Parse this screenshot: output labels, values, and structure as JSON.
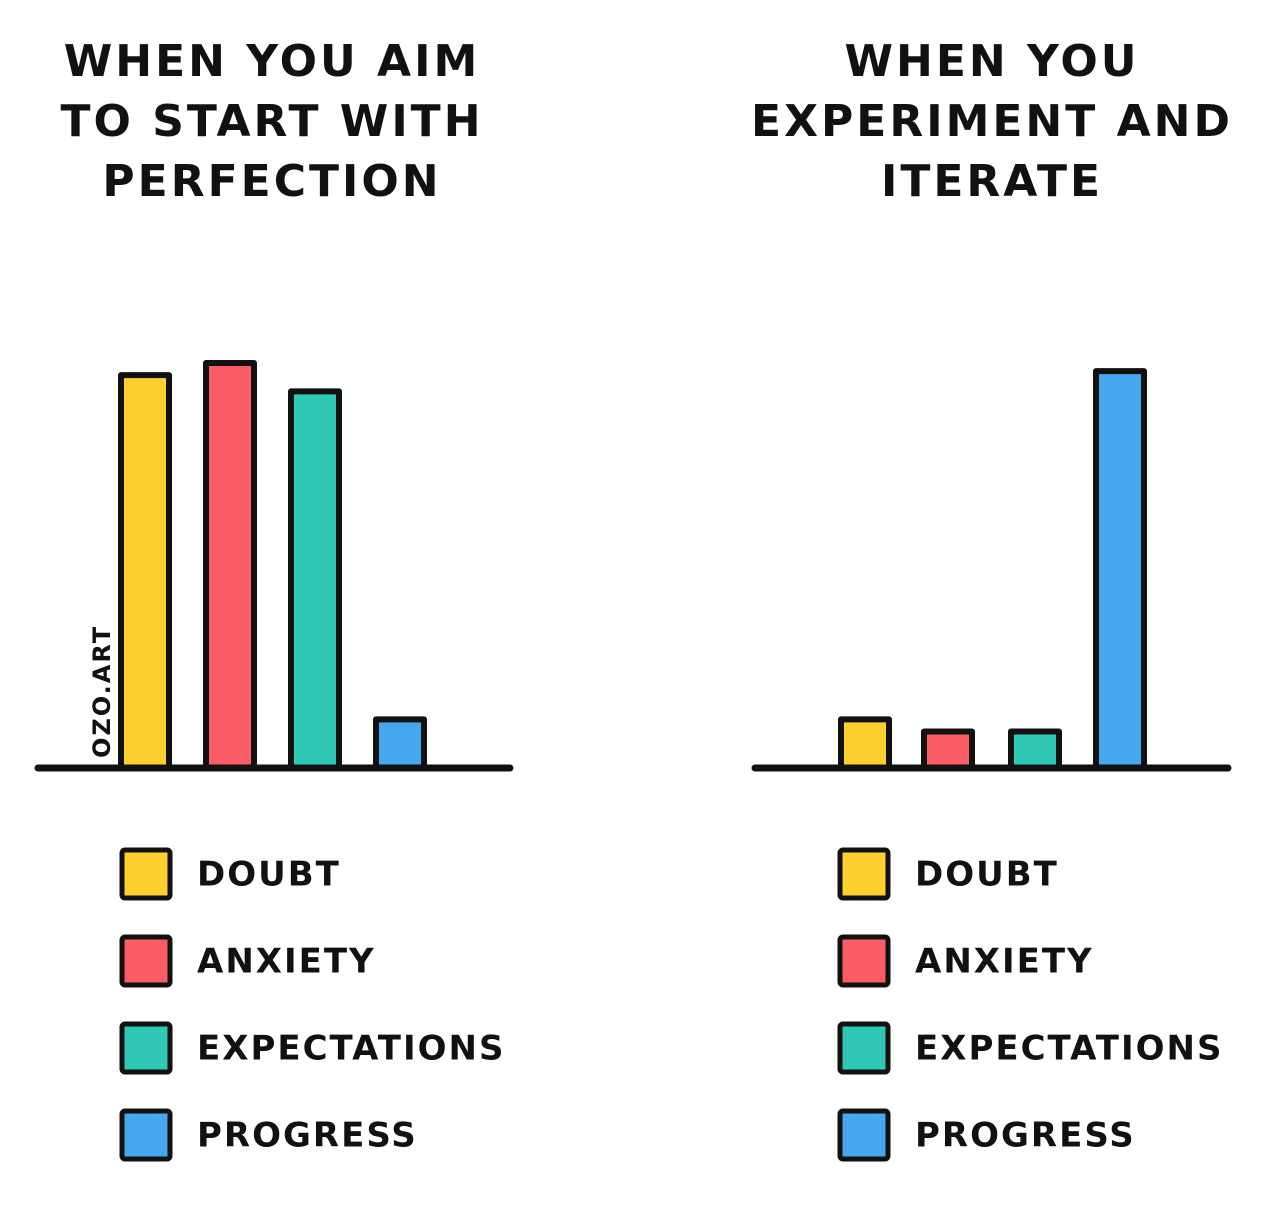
{
  "chart_data": [
    {
      "type": "bar",
      "title": "WHEN YOU AIM TO START WITH PERFECTION",
      "annotation": "OZO.ART",
      "categories": [
        "DOUBT",
        "ANXIETY",
        "EXPECTATIONS",
        "PROGRESS"
      ],
      "values": [
        97,
        100,
        93,
        12
      ],
      "colors": [
        "#fdd02f",
        "#fb5d67",
        "#2ec8b5",
        "#45a8ef"
      ],
      "ylim": [
        0,
        100
      ]
    },
    {
      "type": "bar",
      "title": "WHEN YOU EXPERIMENT AND ITERATE",
      "categories": [
        "DOUBT",
        "ANXIETY",
        "EXPECTATIONS",
        "PROGRESS"
      ],
      "values": [
        12,
        9,
        9,
        98
      ],
      "colors": [
        "#fdd02f",
        "#fb5d67",
        "#2ec8b5",
        "#45a8ef"
      ],
      "ylim": [
        0,
        100
      ]
    }
  ]
}
